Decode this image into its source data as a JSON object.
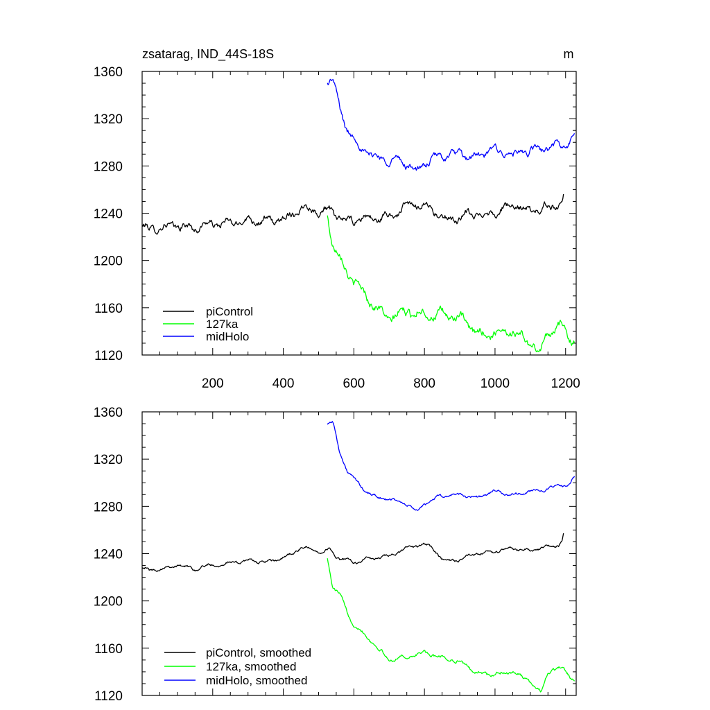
{
  "chart_data": [
    {
      "type": "line",
      "title_left": "zsatarag, IND_44S-18S",
      "units": "m",
      "xlim": [
        0,
        1230
      ],
      "ylim": [
        1120,
        1360
      ],
      "x_ticks": [
        200,
        400,
        600,
        800,
        1000,
        1200
      ],
      "y_ticks": [
        1120,
        1160,
        1200,
        1240,
        1280,
        1320,
        1360
      ],
      "legend": {
        "placement": "bottom-left",
        "entries": [
          "piControl",
          "127ka",
          "midHolo"
        ]
      },
      "series": [
        {
          "name": "piControl",
          "color": "#000000",
          "noise": 2.5,
          "points": [
            [
              0,
              1229
            ],
            [
              20,
              1225
            ],
            [
              50,
              1227
            ],
            [
              100,
              1231
            ],
            [
              150,
              1227
            ],
            [
              200,
              1230
            ],
            [
              250,
              1233
            ],
            [
              300,
              1234
            ],
            [
              350,
              1232
            ],
            [
              400,
              1237
            ],
            [
              450,
              1244
            ],
            [
              500,
              1242
            ],
            [
              530,
              1244
            ],
            [
              560,
              1236
            ],
            [
              600,
              1232
            ],
            [
              650,
              1236
            ],
            [
              700,
              1238
            ],
            [
              750,
              1244
            ],
            [
              800,
              1248
            ],
            [
              830,
              1244
            ],
            [
              850,
              1235
            ],
            [
              900,
              1234
            ],
            [
              950,
              1240
            ],
            [
              1000,
              1242
            ],
            [
              1050,
              1244
            ],
            [
              1100,
              1243
            ],
            [
              1150,
              1246
            ],
            [
              1180,
              1246
            ],
            [
              1190,
              1250
            ],
            [
              1195,
              1258
            ]
          ]
        },
        {
          "name": "127ka",
          "color": "#00ff00",
          "noise": 3,
          "points": [
            [
              525,
              1240
            ],
            [
              540,
              1215
            ],
            [
              560,
              1205
            ],
            [
              580,
              1190
            ],
            [
              600,
              1180
            ],
            [
              650,
              1167
            ],
            [
              700,
              1150
            ],
            [
              750,
              1155
            ],
            [
              800,
              1158
            ],
            [
              850,
              1153
            ],
            [
              900,
              1150
            ],
            [
              950,
              1140
            ],
            [
              1000,
              1138
            ],
            [
              1050,
              1140
            ],
            [
              1100,
              1132
            ],
            [
              1130,
              1122
            ],
            [
              1150,
              1140
            ],
            [
              1180,
              1142
            ],
            [
              1200,
              1140
            ],
            [
              1225,
              1133
            ]
          ]
        },
        {
          "name": "midHolo",
          "color": "#0000ff",
          "noise": 2.5,
          "points": [
            [
              525,
              1352
            ],
            [
              540,
              1352
            ],
            [
              560,
              1328
            ],
            [
              580,
              1310
            ],
            [
              600,
              1303
            ],
            [
              620,
              1297
            ],
            [
              650,
              1290
            ],
            [
              700,
              1284
            ],
            [
              750,
              1282
            ],
            [
              780,
              1277
            ],
            [
              800,
              1283
            ],
            [
              850,
              1287
            ],
            [
              900,
              1290
            ],
            [
              950,
              1288
            ],
            [
              1000,
              1292
            ],
            [
              1050,
              1290
            ],
            [
              1100,
              1293
            ],
            [
              1150,
              1294
            ],
            [
              1200,
              1298
            ],
            [
              1225,
              1305
            ]
          ]
        }
      ]
    },
    {
      "type": "line",
      "xlim": [
        0,
        1230
      ],
      "ylim": [
        1120,
        1360
      ],
      "y_ticks": [
        1120,
        1160,
        1200,
        1240,
        1280,
        1320,
        1360
      ],
      "legend": {
        "placement": "bottom-left",
        "entries": [
          "piControl, smoothed",
          "127ka, smoothed",
          "midHolo, smoothed"
        ]
      },
      "series": [
        {
          "name": "piControl, smoothed",
          "color": "#000000",
          "noise": 1,
          "points": [
            [
              0,
              1229
            ],
            [
              20,
              1225
            ],
            [
              50,
              1227
            ],
            [
              100,
              1231
            ],
            [
              150,
              1227
            ],
            [
              200,
              1230
            ],
            [
              250,
              1233
            ],
            [
              300,
              1234
            ],
            [
              350,
              1232
            ],
            [
              400,
              1237
            ],
            [
              450,
              1244
            ],
            [
              500,
              1242
            ],
            [
              530,
              1244
            ],
            [
              560,
              1236
            ],
            [
              600,
              1232
            ],
            [
              650,
              1236
            ],
            [
              700,
              1238
            ],
            [
              750,
              1244
            ],
            [
              800,
              1248
            ],
            [
              830,
              1244
            ],
            [
              850,
              1235
            ],
            [
              900,
              1234
            ],
            [
              950,
              1240
            ],
            [
              1000,
              1242
            ],
            [
              1050,
              1244
            ],
            [
              1100,
              1243
            ],
            [
              1150,
              1246
            ],
            [
              1180,
              1246
            ],
            [
              1190,
              1250
            ],
            [
              1195,
              1258
            ]
          ]
        },
        {
          "name": "127ka, smoothed",
          "color": "#00ff00",
          "noise": 1.2,
          "points": [
            [
              525,
              1238
            ],
            [
              540,
              1212
            ],
            [
              560,
              1205
            ],
            [
              580,
              1190
            ],
            [
              600,
              1180
            ],
            [
              650,
              1167
            ],
            [
              700,
              1150
            ],
            [
              750,
              1152
            ],
            [
              800,
              1157
            ],
            [
              850,
              1152
            ],
            [
              900,
              1148
            ],
            [
              950,
              1140
            ],
            [
              1000,
              1137
            ],
            [
              1050,
              1140
            ],
            [
              1100,
              1132
            ],
            [
              1130,
              1123
            ],
            [
              1150,
              1140
            ],
            [
              1180,
              1142
            ],
            [
              1200,
              1141
            ],
            [
              1225,
              1133
            ]
          ]
        },
        {
          "name": "midHolo, smoothed",
          "color": "#0000ff",
          "noise": 1,
          "points": [
            [
              525,
              1351
            ],
            [
              540,
              1352
            ],
            [
              560,
              1325
            ],
            [
              580,
              1310
            ],
            [
              600,
              1303
            ],
            [
              620,
              1297
            ],
            [
              650,
              1290
            ],
            [
              700,
              1285
            ],
            [
              750,
              1282
            ],
            [
              780,
              1276
            ],
            [
              800,
              1283
            ],
            [
              850,
              1288
            ],
            [
              900,
              1290
            ],
            [
              950,
              1288
            ],
            [
              1000,
              1292
            ],
            [
              1050,
              1290
            ],
            [
              1100,
              1293
            ],
            [
              1150,
              1294
            ],
            [
              1200,
              1298
            ],
            [
              1225,
              1305
            ]
          ]
        }
      ]
    }
  ]
}
